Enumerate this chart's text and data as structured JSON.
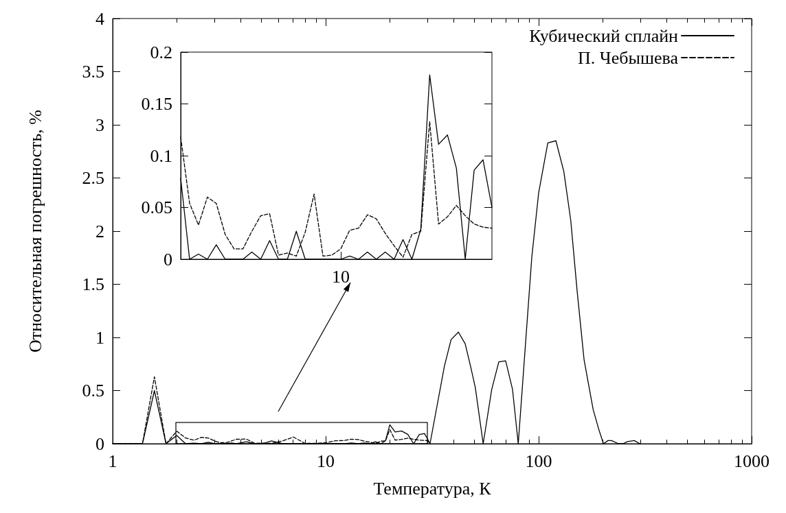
{
  "chart_data": [
    {
      "type": "line",
      "xlabel": "Температура, К",
      "ylabel": "Относительная погрешность, %",
      "log": "x",
      "xlim": [
        1,
        1000
      ],
      "ylim": [
        0,
        4
      ],
      "xticks": [
        1,
        {
          "value": 2,
          "label": null
        },
        {
          "value": 3,
          "label": null
        },
        {
          "value": 4,
          "label": null
        },
        {
          "value": 5,
          "label": null
        },
        {
          "value": 6,
          "label": null
        },
        {
          "value": 7,
          "label": null
        },
        {
          "value": 8,
          "label": null
        },
        {
          "value": 9,
          "label": null
        },
        10,
        {
          "value": 20,
          "label": null
        },
        {
          "value": 30,
          "label": null
        },
        {
          "value": 40,
          "label": null
        },
        {
          "value": 50,
          "label": null
        },
        {
          "value": 60,
          "label": null
        },
        {
          "value": 70,
          "label": null
        },
        {
          "value": 80,
          "label": null
        },
        {
          "value": 90,
          "label": null
        },
        100,
        {
          "value": 200,
          "label": null
        },
        {
          "value": 300,
          "label": null
        },
        {
          "value": 400,
          "label": null
        },
        {
          "value": 500,
          "label": null
        },
        {
          "value": 600,
          "label": null
        },
        {
          "value": 700,
          "label": null
        },
        {
          "value": 800,
          "label": null
        },
        {
          "value": 900,
          "label": null
        },
        1000
      ],
      "yticks": [
        0,
        0.5,
        1,
        1.5,
        2,
        2.5,
        3,
        3.5,
        4
      ],
      "legend": "top right",
      "marker": "none",
      "series": [
        {
          "name": "Кубический сплайн",
          "color": "#000000",
          "line_style": "solid",
          "x": [
            1,
            1.38,
            1.57,
            1.78,
            2.0,
            2.2,
            2.41,
            2.61,
            2.81,
            3.02,
            3.42,
            3.62,
            3.81,
            4.24,
            4.65,
            5.03,
            5.57,
            6.27,
            10,
            11.1,
            12.2,
            13.2,
            14.2,
            15.2,
            16.2,
            17.1,
            18.2,
            19.1,
            20,
            21.2,
            22.7,
            24.3,
            25.9,
            27.5,
            29.1,
            30,
            30.9,
            36.1,
            38.8,
            42,
            45.2,
            48,
            50.4,
            54.9,
            60.2,
            65,
            70,
            75.4,
            80.2,
            92.9,
            100,
            110.4,
            120.5,
            131.3,
            141.5,
            151.7,
            163.4,
            180.3,
            191.9,
            201.5,
            211.7,
            219.8,
            237,
            248.8,
            261,
            281,
            299
          ],
          "values": [
            0,
            0,
            0.5,
            0,
            0.078,
            0,
            0.005,
            0,
            0.014,
            0,
            0,
            0.007,
            0,
            0.018,
            0,
            0,
            0.027,
            0,
            0,
            0.003,
            0,
            0.007,
            0,
            0.007,
            0,
            0.019,
            0,
            0.029,
            0.178,
            0.111,
            0.12,
            0.088,
            0,
            0.086,
            0.096,
            0.05,
            0,
            0.73,
            0.98,
            1.05,
            0.94,
            0.72,
            0.53,
            0,
            0.51,
            0.77,
            0.78,
            0.51,
            0,
            1.76,
            2.36,
            2.83,
            2.85,
            2.56,
            2.1,
            1.43,
            0.79,
            0.32,
            0.13,
            0,
            0.03,
            0.03,
            0,
            0,
            0.02,
            0.03,
            0
          ]
        },
        {
          "name": "П. Чебышева",
          "color": "#000000",
          "line_style": "dashed",
          "x": [
            1,
            1.38,
            1.57,
            1.78,
            2.0,
            2.2,
            2.41,
            2.61,
            2.81,
            3.02,
            3.21,
            3.42,
            3.81,
            4.24,
            4.65,
            5.03,
            5.57,
            6.27,
            7.06,
            8.0,
            9.0,
            10,
            11.1,
            12.2,
            13.2,
            14.2,
            15.2,
            16.2,
            17.1,
            18.2,
            19.1,
            20,
            21.2,
            22.7,
            24.3,
            25.9,
            27.5,
            29.1,
            30,
            30.9
          ],
          "values": [
            0,
            0,
            0.63,
            0,
            0.118,
            0.054,
            0.033,
            0.06,
            0.054,
            0.024,
            0.01,
            0.01,
            0.042,
            0.044,
            0.004,
            0.006,
            0.003,
            0.026,
            0.063,
            0.003,
            0.004,
            0.01,
            0.028,
            0.03,
            0.043,
            0.039,
            0.025,
            0.013,
            0.002,
            0.024,
            0.027,
            0.133,
            0.034,
            0.041,
            0.052,
            0.042,
            0.034,
            0.031,
            0.03,
            0
          ]
        }
      ]
    },
    {
      "type": "line",
      "categories": [
        null,
        null,
        null,
        null,
        null,
        null,
        null,
        null,
        null,
        null,
        null,
        null,
        null,
        null,
        null,
        null,
        null,
        null,
        "10",
        null,
        null,
        null,
        null,
        null,
        null,
        null,
        null,
        null,
        null,
        null,
        null,
        null,
        null,
        null,
        null,
        null
      ],
      "ylim": [
        0,
        0.2
      ],
      "yticks": [
        0,
        0.05,
        0.1,
        0.15,
        0.2
      ],
      "marker": "none",
      "series": [
        {
          "color": "#000000",
          "line_style": "solid",
          "values": [
            0.078,
            0,
            0.005,
            0,
            0.014,
            0,
            0,
            0,
            0.007,
            0,
            0.018,
            0,
            0,
            0.027,
            0,
            0,
            0,
            0,
            0,
            0.003,
            0,
            0.007,
            0,
            0.007,
            0,
            0.019,
            0,
            0.029,
            0.178,
            0.111,
            0.12,
            0.088,
            0,
            0.086,
            0.096,
            0.05
          ]
        },
        {
          "color": "#000000",
          "line_style": "dashed",
          "values": [
            0.118,
            0.054,
            0.033,
            0.06,
            0.054,
            0.024,
            0.01,
            0.01,
            0.027,
            0.042,
            0.044,
            0.004,
            0.006,
            0.003,
            0.026,
            0.063,
            0.003,
            0.004,
            0.01,
            0.028,
            0.03,
            0.043,
            0.039,
            0.025,
            0.013,
            0.002,
            0.024,
            0.027,
            0.133,
            0.034,
            0.041,
            0.052,
            0.042,
            0.034,
            0.031,
            0.03
          ]
        }
      ]
    }
  ]
}
